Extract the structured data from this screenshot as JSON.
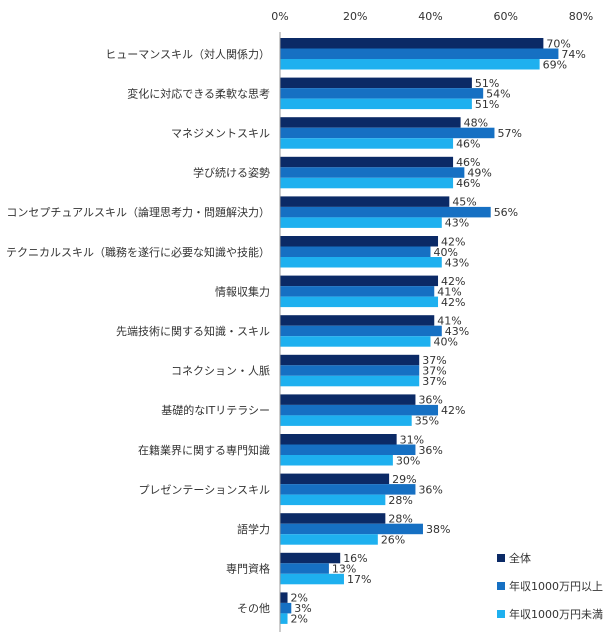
{
  "chart_data": {
    "type": "bar",
    "orientation": "horizontal",
    "categories": [
      "ヒューマンスキル（対人関係力）",
      "変化に対応できる柔軟な思考",
      "マネジメントスキル",
      "学び続ける姿勢",
      "コンセプチュアルスキル（論理思考力・問題解決力）",
      "テクニカルスキル（職務を遂行に必要な知識や技能）",
      "情報収集力",
      "先端技術に関する知識・スキル",
      "コネクション・人脈",
      "基礎的なITリテラシー",
      "在籍業界に関する専門知識",
      "プレゼンテーションスキル",
      "語学力",
      "専門資格",
      "その他"
    ],
    "series": [
      {
        "name": "全体",
        "color": "#0b2a66",
        "values": [
          70,
          51,
          48,
          46,
          45,
          42,
          42,
          41,
          37,
          36,
          31,
          29,
          28,
          16,
          2
        ]
      },
      {
        "name": "年収1000万円以上",
        "color": "#1670c3",
        "values": [
          74,
          54,
          57,
          49,
          56,
          40,
          41,
          43,
          37,
          42,
          36,
          36,
          38,
          13,
          3
        ]
      },
      {
        "name": "年収1000万円未満",
        "color": "#1eb0ef",
        "values": [
          69,
          51,
          46,
          46,
          43,
          43,
          42,
          40,
          37,
          35,
          30,
          28,
          26,
          17,
          2
        ]
      }
    ],
    "xlim": [
      0,
      80
    ],
    "xticks": [
      "0%",
      "20%",
      "40%",
      "60%",
      "80%"
    ],
    "value_suffix": "%",
    "grid": false,
    "legend_position": "bottom-right"
  }
}
